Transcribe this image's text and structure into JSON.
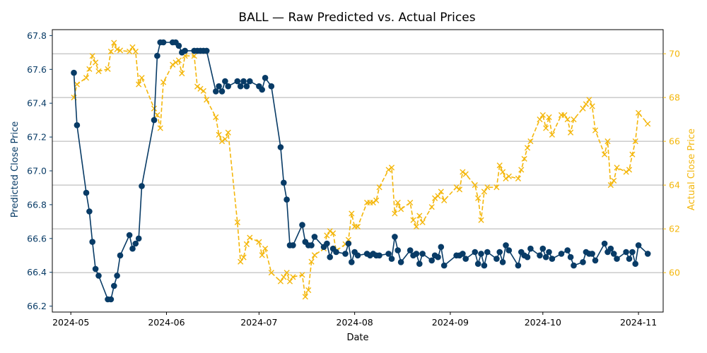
{
  "chart_data": {
    "type": "line",
    "title": "BALL — Raw Predicted vs. Actual Prices",
    "xlabel": "Date",
    "ylabel_left": "Predicted Close Price",
    "ylabel_right": "Actual Close Price",
    "x_ticks": [
      "2024-05",
      "2024-06",
      "2024-07",
      "2024-08",
      "2024-09",
      "2024-10",
      "2024-11"
    ],
    "y_left_ticks": [
      "66.2",
      "66.4",
      "66.6",
      "66.8",
      "67.0",
      "67.2",
      "67.4",
      "67.6",
      "67.8"
    ],
    "y_right_ticks": [
      "60",
      "62",
      "64",
      "66",
      "68",
      "70"
    ],
    "grid": "horizontal, right axis",
    "colors": {
      "predicted": "#083b66",
      "actual": "#f4b70d"
    },
    "series": [
      {
        "axis": "left",
        "marker": "circle",
        "style": "solid",
        "points": [
          [
            "2024-05-02",
            67.58
          ],
          [
            "2024-05-03",
            67.27
          ],
          [
            "2024-05-06",
            66.87
          ],
          [
            "2024-05-07",
            66.76
          ],
          [
            "2024-05-08",
            66.58
          ],
          [
            "2024-05-09",
            66.42
          ],
          [
            "2024-05-10",
            66.38
          ],
          [
            "2024-05-13",
            66.24
          ],
          [
            "2024-05-14",
            66.24
          ],
          [
            "2024-05-15",
            66.32
          ],
          [
            "2024-05-16",
            66.38
          ],
          [
            "2024-05-17",
            66.5
          ],
          [
            "2024-05-20",
            66.62
          ],
          [
            "2024-05-21",
            66.54
          ],
          [
            "2024-05-22",
            66.57
          ],
          [
            "2024-05-23",
            66.6
          ],
          [
            "2024-05-24",
            66.91
          ],
          [
            "2024-05-28",
            67.3
          ],
          [
            "2024-05-29",
            67.68
          ],
          [
            "2024-05-30",
            67.76
          ],
          [
            "2024-05-31",
            67.76
          ],
          [
            "2024-06-03",
            67.76
          ],
          [
            "2024-06-04",
            67.76
          ],
          [
            "2024-06-05",
            67.74
          ],
          [
            "2024-06-06",
            67.7
          ],
          [
            "2024-06-07",
            67.71
          ],
          [
            "2024-06-10",
            67.71
          ],
          [
            "2024-06-11",
            67.71
          ],
          [
            "2024-06-12",
            67.71
          ],
          [
            "2024-06-13",
            67.71
          ],
          [
            "2024-06-14",
            67.71
          ],
          [
            "2024-06-17",
            67.47
          ],
          [
            "2024-06-18",
            67.5
          ],
          [
            "2024-06-19",
            67.47
          ],
          [
            "2024-06-20",
            67.53
          ],
          [
            "2024-06-21",
            67.5
          ],
          [
            "2024-06-24",
            67.53
          ],
          [
            "2024-06-25",
            67.5
          ],
          [
            "2024-06-26",
            67.53
          ],
          [
            "2024-06-27",
            67.5
          ],
          [
            "2024-06-28",
            67.53
          ],
          [
            "2024-07-01",
            67.5
          ],
          [
            "2024-07-02",
            67.48
          ],
          [
            "2024-07-03",
            67.55
          ],
          [
            "2024-07-05",
            67.5
          ],
          [
            "2024-07-08",
            67.14
          ],
          [
            "2024-07-09",
            66.93
          ],
          [
            "2024-07-10",
            66.83
          ],
          [
            "2024-07-11",
            66.56
          ],
          [
            "2024-07-12",
            66.56
          ],
          [
            "2024-07-15",
            66.68
          ],
          [
            "2024-07-16",
            66.58
          ],
          [
            "2024-07-17",
            66.56
          ],
          [
            "2024-07-18",
            66.56
          ],
          [
            "2024-07-19",
            66.61
          ],
          [
            "2024-07-22",
            66.55
          ],
          [
            "2024-07-23",
            66.57
          ],
          [
            "2024-07-24",
            66.49
          ],
          [
            "2024-07-25",
            66.54
          ],
          [
            "2024-07-26",
            66.52
          ],
          [
            "2024-07-29",
            66.51
          ],
          [
            "2024-07-30",
            66.57
          ],
          [
            "2024-07-31",
            66.46
          ],
          [
            "2024-08-01",
            66.52
          ],
          [
            "2024-08-02",
            66.5
          ],
          [
            "2024-08-05",
            66.51
          ],
          [
            "2024-08-06",
            66.5
          ],
          [
            "2024-08-07",
            66.51
          ],
          [
            "2024-08-08",
            66.5
          ],
          [
            "2024-08-09",
            66.5
          ],
          [
            "2024-08-12",
            66.51
          ],
          [
            "2024-08-13",
            66.48
          ],
          [
            "2024-08-14",
            66.61
          ],
          [
            "2024-08-15",
            66.53
          ],
          [
            "2024-08-16",
            66.46
          ],
          [
            "2024-08-19",
            66.53
          ],
          [
            "2024-08-20",
            66.5
          ],
          [
            "2024-08-21",
            66.51
          ],
          [
            "2024-08-22",
            66.45
          ],
          [
            "2024-08-23",
            66.51
          ],
          [
            "2024-08-26",
            66.47
          ],
          [
            "2024-08-27",
            66.5
          ],
          [
            "2024-08-28",
            66.49
          ],
          [
            "2024-08-29",
            66.55
          ],
          [
            "2024-08-30",
            66.44
          ],
          [
            "2024-09-03",
            66.5
          ],
          [
            "2024-09-04",
            66.5
          ],
          [
            "2024-09-05",
            66.51
          ],
          [
            "2024-09-06",
            66.48
          ],
          [
            "2024-09-09",
            66.52
          ],
          [
            "2024-09-10",
            66.45
          ],
          [
            "2024-09-11",
            66.51
          ],
          [
            "2024-09-12",
            66.44
          ],
          [
            "2024-09-13",
            66.52
          ],
          [
            "2024-09-16",
            66.48
          ],
          [
            "2024-09-17",
            66.52
          ],
          [
            "2024-09-18",
            66.46
          ],
          [
            "2024-09-19",
            66.56
          ],
          [
            "2024-09-20",
            66.53
          ],
          [
            "2024-09-23",
            66.44
          ],
          [
            "2024-09-24",
            66.52
          ],
          [
            "2024-09-25",
            66.5
          ],
          [
            "2024-09-26",
            66.49
          ],
          [
            "2024-09-27",
            66.54
          ],
          [
            "2024-09-30",
            66.5
          ],
          [
            "2024-10-01",
            66.54
          ],
          [
            "2024-10-02",
            66.49
          ],
          [
            "2024-10-03",
            66.52
          ],
          [
            "2024-10-04",
            66.48
          ],
          [
            "2024-10-07",
            66.51
          ],
          [
            "2024-10-09",
            66.53
          ],
          [
            "2024-10-10",
            66.49
          ],
          [
            "2024-10-11",
            66.44
          ],
          [
            "2024-10-14",
            66.46
          ],
          [
            "2024-10-15",
            66.52
          ],
          [
            "2024-10-16",
            66.51
          ],
          [
            "2024-10-17",
            66.51
          ],
          [
            "2024-10-18",
            66.47
          ],
          [
            "2024-10-21",
            66.57
          ],
          [
            "2024-10-22",
            66.52
          ],
          [
            "2024-10-23",
            66.54
          ],
          [
            "2024-10-24",
            66.51
          ],
          [
            "2024-10-25",
            66.48
          ],
          [
            "2024-10-28",
            66.52
          ],
          [
            "2024-10-29",
            66.48
          ],
          [
            "2024-10-30",
            66.52
          ],
          [
            "2024-10-31",
            66.45
          ],
          [
            "2024-11-01",
            66.56
          ],
          [
            "2024-11-04",
            66.51
          ]
        ]
      },
      {
        "axis": "right",
        "marker": "x",
        "style": "dashed",
        "points": [
          [
            "2024-05-02",
            68.0
          ],
          [
            "2024-05-03",
            68.6
          ],
          [
            "2024-05-06",
            68.9
          ],
          [
            "2024-05-07",
            69.3
          ],
          [
            "2024-05-08",
            69.9
          ],
          [
            "2024-05-09",
            69.6
          ],
          [
            "2024-05-10",
            69.2
          ],
          [
            "2024-05-13",
            69.3
          ],
          [
            "2024-05-14",
            70.1
          ],
          [
            "2024-05-15",
            70.5
          ],
          [
            "2024-05-16",
            70.2
          ],
          [
            "2024-05-17",
            70.15
          ],
          [
            "2024-05-20",
            70.1
          ],
          [
            "2024-05-21",
            70.3
          ],
          [
            "2024-05-22",
            70.1
          ],
          [
            "2024-05-23",
            68.6
          ],
          [
            "2024-05-24",
            68.9
          ],
          [
            "2024-05-28",
            67.5
          ],
          [
            "2024-05-29",
            67.2
          ],
          [
            "2024-05-30",
            66.6
          ],
          [
            "2024-05-31",
            68.7
          ],
          [
            "2024-06-03",
            69.5
          ],
          [
            "2024-06-04",
            69.6
          ],
          [
            "2024-06-05",
            69.7
          ],
          [
            "2024-06-06",
            69.1
          ],
          [
            "2024-06-07",
            69.9
          ],
          [
            "2024-06-10",
            69.9
          ],
          [
            "2024-06-11",
            68.5
          ],
          [
            "2024-06-12",
            68.4
          ],
          [
            "2024-06-13",
            68.3
          ],
          [
            "2024-06-14",
            67.9
          ],
          [
            "2024-06-17",
            67.1
          ],
          [
            "2024-06-18",
            66.3
          ],
          [
            "2024-06-19",
            66.0
          ],
          [
            "2024-06-20",
            66.1
          ],
          [
            "2024-06-21",
            66.4
          ],
          [
            "2024-06-24",
            62.3
          ],
          [
            "2024-06-25",
            60.5
          ],
          [
            "2024-06-26",
            60.7
          ],
          [
            "2024-06-27",
            61.3
          ],
          [
            "2024-06-28",
            61.6
          ],
          [
            "2024-07-01",
            61.4
          ],
          [
            "2024-07-02",
            60.8
          ],
          [
            "2024-07-03",
            61.1
          ],
          [
            "2024-07-05",
            60.0
          ],
          [
            "2024-07-08",
            59.6
          ],
          [
            "2024-07-09",
            59.8
          ],
          [
            "2024-07-10",
            60.0
          ],
          [
            "2024-07-11",
            59.6
          ],
          [
            "2024-07-12",
            59.8
          ],
          [
            "2024-07-15",
            59.9
          ],
          [
            "2024-07-16",
            58.9
          ],
          [
            "2024-07-17",
            59.2
          ],
          [
            "2024-07-18",
            60.5
          ],
          [
            "2024-07-19",
            60.8
          ],
          [
            "2024-07-22",
            61.1
          ],
          [
            "2024-07-23",
            61.7
          ],
          [
            "2024-07-24",
            61.9
          ],
          [
            "2024-07-25",
            61.8
          ],
          [
            "2024-07-26",
            61.0
          ],
          [
            "2024-07-29",
            61.3
          ],
          [
            "2024-07-30",
            61.5
          ],
          [
            "2024-07-31",
            62.7
          ],
          [
            "2024-08-01",
            62.1
          ],
          [
            "2024-08-02",
            62.1
          ],
          [
            "2024-08-05",
            63.2
          ],
          [
            "2024-08-06",
            63.2
          ],
          [
            "2024-08-07",
            63.2
          ],
          [
            "2024-08-08",
            63.3
          ],
          [
            "2024-08-09",
            63.9
          ],
          [
            "2024-08-12",
            64.7
          ],
          [
            "2024-08-13",
            64.8
          ],
          [
            "2024-08-14",
            62.7
          ],
          [
            "2024-08-15",
            63.2
          ],
          [
            "2024-08-16",
            62.9
          ],
          [
            "2024-08-19",
            63.2
          ],
          [
            "2024-08-20",
            62.4
          ],
          [
            "2024-08-21",
            62.1
          ],
          [
            "2024-08-22",
            62.6
          ],
          [
            "2024-08-23",
            62.3
          ],
          [
            "2024-08-26",
            63.0
          ],
          [
            "2024-08-27",
            63.4
          ],
          [
            "2024-08-28",
            63.5
          ],
          [
            "2024-08-29",
            63.7
          ],
          [
            "2024-08-30",
            63.3
          ],
          [
            "2024-09-03",
            63.9
          ],
          [
            "2024-09-04",
            63.8
          ],
          [
            "2024-09-05",
            64.6
          ],
          [
            "2024-09-06",
            64.5
          ],
          [
            "2024-09-09",
            64.0
          ],
          [
            "2024-09-10",
            63.4
          ],
          [
            "2024-09-11",
            62.4
          ],
          [
            "2024-09-12",
            63.7
          ],
          [
            "2024-09-13",
            63.9
          ],
          [
            "2024-09-16",
            63.9
          ],
          [
            "2024-09-17",
            64.9
          ],
          [
            "2024-09-18",
            64.6
          ],
          [
            "2024-09-19",
            64.3
          ],
          [
            "2024-09-20",
            64.4
          ],
          [
            "2024-09-23",
            64.3
          ],
          [
            "2024-09-24",
            64.7
          ],
          [
            "2024-09-25",
            65.2
          ],
          [
            "2024-09-26",
            65.7
          ],
          [
            "2024-09-27",
            66.0
          ],
          [
            "2024-09-30",
            67.0
          ],
          [
            "2024-10-01",
            67.2
          ],
          [
            "2024-10-02",
            66.6
          ],
          [
            "2024-10-03",
            67.1
          ],
          [
            "2024-10-04",
            66.3
          ],
          [
            "2024-10-07",
            67.2
          ],
          [
            "2024-10-08",
            67.2
          ],
          [
            "2024-10-09",
            67.0
          ],
          [
            "2024-10-10",
            66.4
          ],
          [
            "2024-10-11",
            67.0
          ],
          [
            "2024-10-14",
            67.5
          ],
          [
            "2024-10-15",
            67.7
          ],
          [
            "2024-10-16",
            67.9
          ],
          [
            "2024-10-17",
            67.6
          ],
          [
            "2024-10-18",
            66.5
          ],
          [
            "2024-10-21",
            65.4
          ],
          [
            "2024-10-22",
            66.0
          ],
          [
            "2024-10-23",
            64.0
          ],
          [
            "2024-10-24",
            64.2
          ],
          [
            "2024-10-25",
            64.8
          ],
          [
            "2024-10-28",
            64.6
          ],
          [
            "2024-10-29",
            64.7
          ],
          [
            "2024-10-30",
            65.4
          ],
          [
            "2024-10-31",
            66.0
          ],
          [
            "2024-11-01",
            67.3
          ],
          [
            "2024-11-04",
            66.8
          ]
        ]
      }
    ]
  }
}
